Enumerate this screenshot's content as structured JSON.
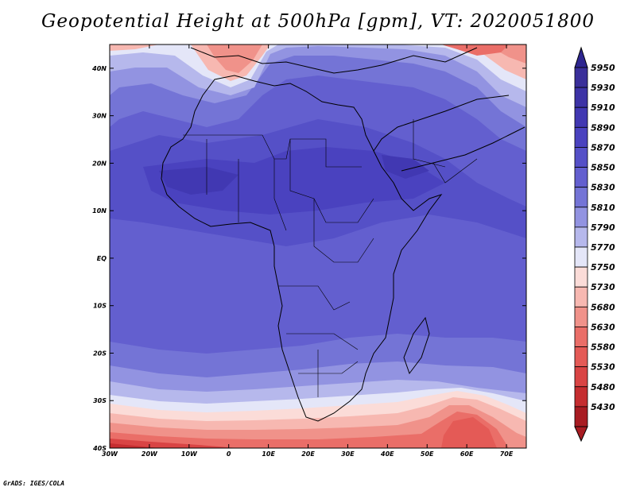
{
  "title": "Geopotential Height at 500hPa [gpm], VT: 2020051800",
  "credit": "GrADS: IGES/COLA",
  "map": {
    "region": "Africa",
    "variable": "Geopotential Height at 500hPa",
    "units": "gpm",
    "valid_time": "2020051800",
    "lon_range": [
      -30,
      75
    ],
    "lat_range": [
      -40,
      45
    ],
    "x_ticks": [
      {
        "lon": -30,
        "label": "30W"
      },
      {
        "lon": -20,
        "label": "20W"
      },
      {
        "lon": -10,
        "label": "10W"
      },
      {
        "lon": 0,
        "label": "0"
      },
      {
        "lon": 10,
        "label": "10E"
      },
      {
        "lon": 20,
        "label": "20E"
      },
      {
        "lon": 30,
        "label": "30E"
      },
      {
        "lon": 40,
        "label": "40E"
      },
      {
        "lon": 50,
        "label": "50E"
      },
      {
        "lon": 60,
        "label": "60E"
      },
      {
        "lon": 70,
        "label": "70E"
      }
    ],
    "y_ticks": [
      {
        "lat": 40,
        "label": "40N"
      },
      {
        "lat": 30,
        "label": "30N"
      },
      {
        "lat": 20,
        "label": "20N"
      },
      {
        "lat": 10,
        "label": "10N"
      },
      {
        "lat": 0,
        "label": "EQ"
      },
      {
        "lat": -10,
        "label": "10S"
      },
      {
        "lat": -20,
        "label": "20S"
      },
      {
        "lat": -30,
        "label": "30S"
      },
      {
        "lat": -40,
        "label": "40S"
      }
    ]
  },
  "colorbar": {
    "levels": [
      {
        "label": "5950",
        "color": "#3a2f9a"
      },
      {
        "label": "5930",
        "color": "#3d33a6"
      },
      {
        "label": "5910",
        "color": "#4138b2"
      },
      {
        "label": "5890",
        "color": "#4a42bf"
      },
      {
        "label": "5870",
        "color": "#5550c7"
      },
      {
        "label": "5850",
        "color": "#635fcf"
      },
      {
        "label": "5830",
        "color": "#7474d6"
      },
      {
        "label": "5810",
        "color": "#9293e1"
      },
      {
        "label": "5790",
        "color": "#b6b8ec"
      },
      {
        "label": "5770",
        "color": "#e4e6f8"
      },
      {
        "label": "5750",
        "color": "#fbdcd8"
      },
      {
        "label": "5730",
        "color": "#f7b8b1"
      },
      {
        "label": "5680",
        "color": "#f0928a"
      },
      {
        "label": "5630",
        "color": "#ea6e68"
      },
      {
        "label": "5580",
        "color": "#e45a56"
      },
      {
        "label": "5530",
        "color": "#d94444"
      },
      {
        "label": "5480",
        "color": "#c52d30"
      },
      {
        "label": "5430",
        "color": "#a81c22"
      }
    ],
    "top_arrow_color": "#2e2690",
    "bottom_arrow_color": "#a81c22"
  }
}
